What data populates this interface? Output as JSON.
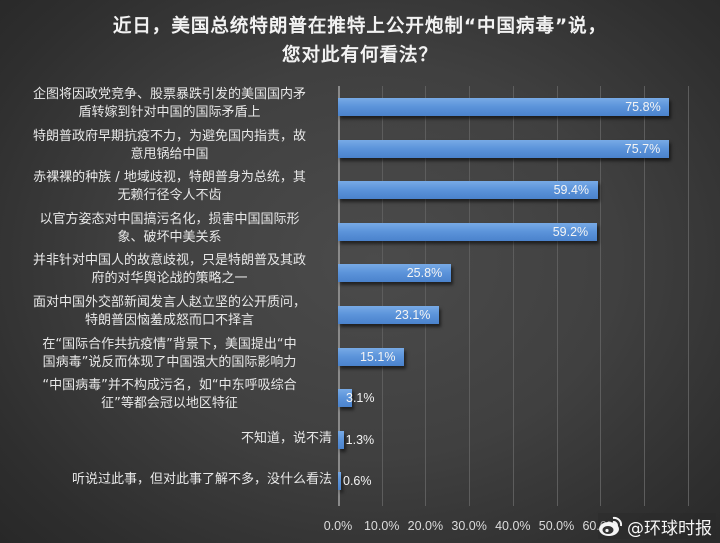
{
  "title": {
    "line1": "近日，美国总统特朗普在推特上公开炮制“中国病毒”说，",
    "line2": "您对此有何看法？"
  },
  "chart_data": {
    "type": "bar",
    "orientation": "horizontal",
    "title": "近日，美国总统特朗普在推特上公开炮制“中国病毒”说，您对此有何看法？",
    "xlabel": "",
    "ylabel": "",
    "xlim": [
      0,
      80
    ],
    "grid": true,
    "legend": null,
    "categories": [
      "企图将因政党竞争、股票暴跌引发的美国国内矛盾转嫁到针对中国的国际矛盾上",
      "特朗普政府早期抗疫不力，为避免国内指责，故意甩锅给中国",
      "赤裸裸的种族 / 地域歧视，特朗普身为总统，其无赖行径令人不齿",
      "以官方姿态对中国搞污名化，损害中国国际形象、破坏中美关系",
      "并非针对中国人的故意歧视，只是特朗普及其政府的对华舆论战的策略之一",
      "面对中国外交部新闻发言人赵立坚的公开质问，特朗普因恼羞成怒而口不择言",
      "在“国际合作共抗疫情”背景下，美国提出“中国病毒”说反而体现了中国强大的国际影响力",
      "“中国病毒”并不构成污名，如“中东呼吸综合征”等都会冠以地区特征",
      "不知道，说不清",
      "听说过此事，但对此事了解不多，没什么看法"
    ],
    "values": [
      75.8,
      75.7,
      59.4,
      59.2,
      25.8,
      23.1,
      15.1,
      3.1,
      1.3,
      0.6
    ],
    "value_labels": [
      "75.8%",
      "75.7%",
      "59.4%",
      "59.2%",
      "25.8%",
      "23.1%",
      "15.1%",
      "3.1%",
      "1.3%",
      "0.6%"
    ],
    "x_ticks": [
      "0.0%",
      "10.0%",
      "20.0%",
      "30.0%",
      "40.0%",
      "50.0%",
      "60.0%"
    ],
    "bar_color": "#5d95db"
  },
  "labels": [
    {
      "l1": "企图将因政党竞争、股票暴跌引发的美国国内矛",
      "l2": "盾转嫁到针对中国的国际矛盾上"
    },
    {
      "l1": "特朗普政府早期抗疫不力，为避免国内指责，故",
      "l2": "意甩锅给中国"
    },
    {
      "l1": "赤裸裸的种族 / 地域歧视，特朗普身为总统，其",
      "l2": "无赖行径令人不齿"
    },
    {
      "l1": "以官方姿态对中国搞污名化，损害中国国际形",
      "l2": "象、破坏中美关系"
    },
    {
      "l1": "并非针对中国人的故意歧视，只是特朗普及其政",
      "l2": "府的对华舆论战的策略之一"
    },
    {
      "l1": "面对中国外交部新闻发言人赵立坚的公开质问，",
      "l2": "特朗普因恼羞成怒而口不择言"
    },
    {
      "l1": "在“国际合作共抗疫情”背景下，美国提出“中",
      "l2": "国病毒”说反而体现了中国强大的国际影响力"
    },
    {
      "l1": "“中国病毒”并不构成污名，如“中东呼吸综合",
      "l2": "征”等都会冠以地区特征"
    },
    {
      "l1": "不知道，说不清",
      "l2": ""
    },
    {
      "l1": "听说过此事，但对此事了解不多，没什么看法",
      "l2": ""
    }
  ],
  "watermark": {
    "icon": "weibo-icon",
    "text": "@环球时报"
  }
}
